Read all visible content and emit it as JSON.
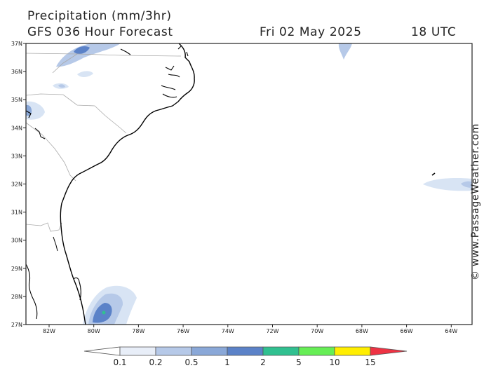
{
  "header": {
    "line1": "Precipitation (mm/3hr)",
    "line2": "GFS 036 Hour Forecast",
    "date": "Fri 02 May 2025",
    "time": "18 UTC"
  },
  "credit": "© www.PassageWeather.com",
  "map": {
    "lat_labels": [
      "37N",
      "36N",
      "35N",
      "34N",
      "33N",
      "32N",
      "31N",
      "30N",
      "29N",
      "28N",
      "27N"
    ],
    "lon_labels": [
      "82W",
      "80W",
      "78W",
      "76W",
      "74W",
      "72W",
      "70W",
      "68W",
      "66W",
      "64W"
    ]
  },
  "colorbar": {
    "labels": [
      "0.1",
      "0.2",
      "0.5",
      "1",
      "2",
      "5",
      "10",
      "15"
    ],
    "colors": [
      "#e8eef8",
      "#b6c9e8",
      "#8aa8d8",
      "#5b82c8",
      "#30c090",
      "#66ee55",
      "#ffee00",
      "#ff9900",
      "#ee3344"
    ]
  }
}
